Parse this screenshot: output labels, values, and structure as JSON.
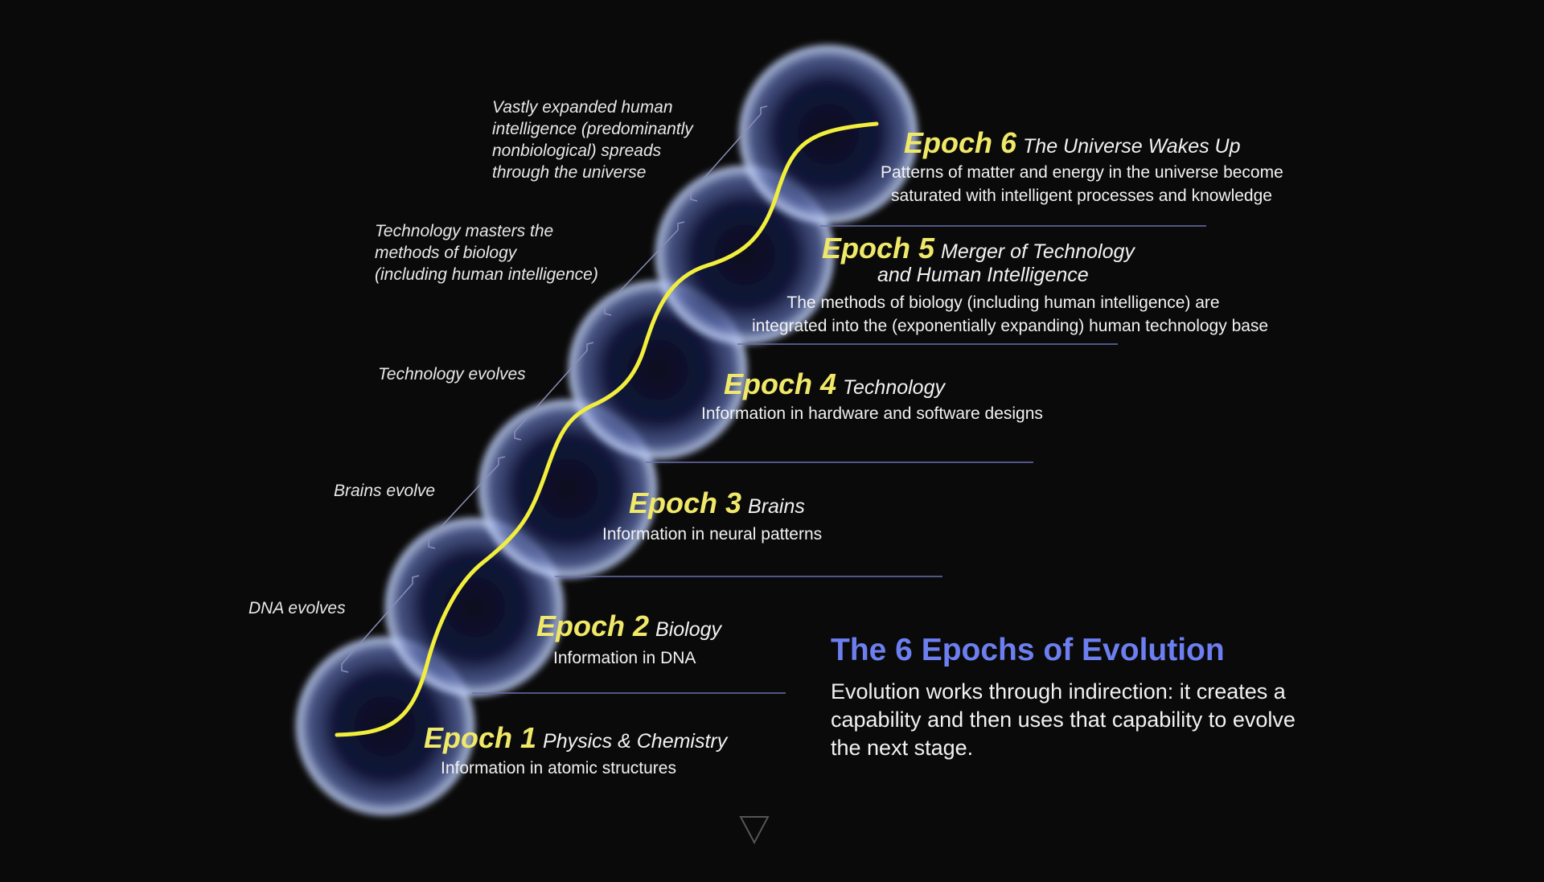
{
  "diagram": {
    "title": "The 6 Epochs of Evolution",
    "description": "Evolution works through indirection: it creates a capability and then uses that capability to evolve the next stage.",
    "epochs": [
      {
        "name": "Epoch 1",
        "subtitle": "Physics & Chemistry",
        "description": [
          "Information in atomic structures"
        ]
      },
      {
        "name": "Epoch 2",
        "subtitle": "Biology",
        "description": [
          "Information in DNA"
        ]
      },
      {
        "name": "Epoch 3",
        "subtitle": "Brains",
        "description": [
          "Information in neural patterns"
        ]
      },
      {
        "name": "Epoch 4",
        "subtitle": "Technology",
        "description": [
          "Information in hardware and software designs"
        ]
      },
      {
        "name": "Epoch 5",
        "subtitle": "Merger of Technology",
        "subtitle2": "and Human Intelligence",
        "description": [
          "The methods of biology (including human intelligence) are",
          "integrated into the (exponentially expanding) human technology base"
        ]
      },
      {
        "name": "Epoch 6",
        "subtitle": "The Universe Wakes Up",
        "description": [
          "Patterns of matter and energy in the universe become",
          "saturated with intelligent processes and knowledge"
        ]
      }
    ],
    "transitions": [
      {
        "lines": [
          "DNA evolves"
        ]
      },
      {
        "lines": [
          "Brains evolve"
        ]
      },
      {
        "lines": [
          "Technology evolves"
        ]
      },
      {
        "lines": [
          "Technology masters the",
          "methods of biology",
          "(including human intelligence)"
        ]
      },
      {
        "lines": [
          "Vastly expanded human",
          "intelligence (predominantly",
          "nonbiological) spreads",
          "through the universe"
        ]
      }
    ]
  },
  "navigation": {
    "next_icon": "triangle-down-icon"
  },
  "colors": {
    "background": "#0a0a0a",
    "epoch_name": "#f0e868",
    "curve": "#f2ee3c",
    "title": "#6d7ff0",
    "divider": "#6a6fb0",
    "sphere_glow": "#b8c8f0"
  }
}
